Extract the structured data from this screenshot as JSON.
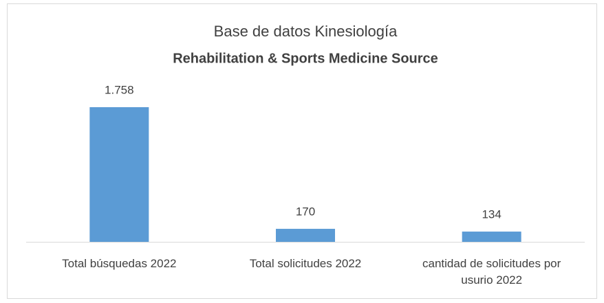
{
  "chart_data": {
    "type": "bar",
    "title": "Base de datos Kinesiología",
    "subtitle": "Rehabilitation & Sports Medicine Source",
    "categories": [
      "Total búsquedas 2022",
      "Total solicitudes 2022",
      "cantidad de solicitudes por usurio 2022"
    ],
    "values": [
      1758,
      170,
      134
    ],
    "value_labels": [
      "1.758",
      "170",
      "134"
    ],
    "color": "#5b9bd5"
  }
}
